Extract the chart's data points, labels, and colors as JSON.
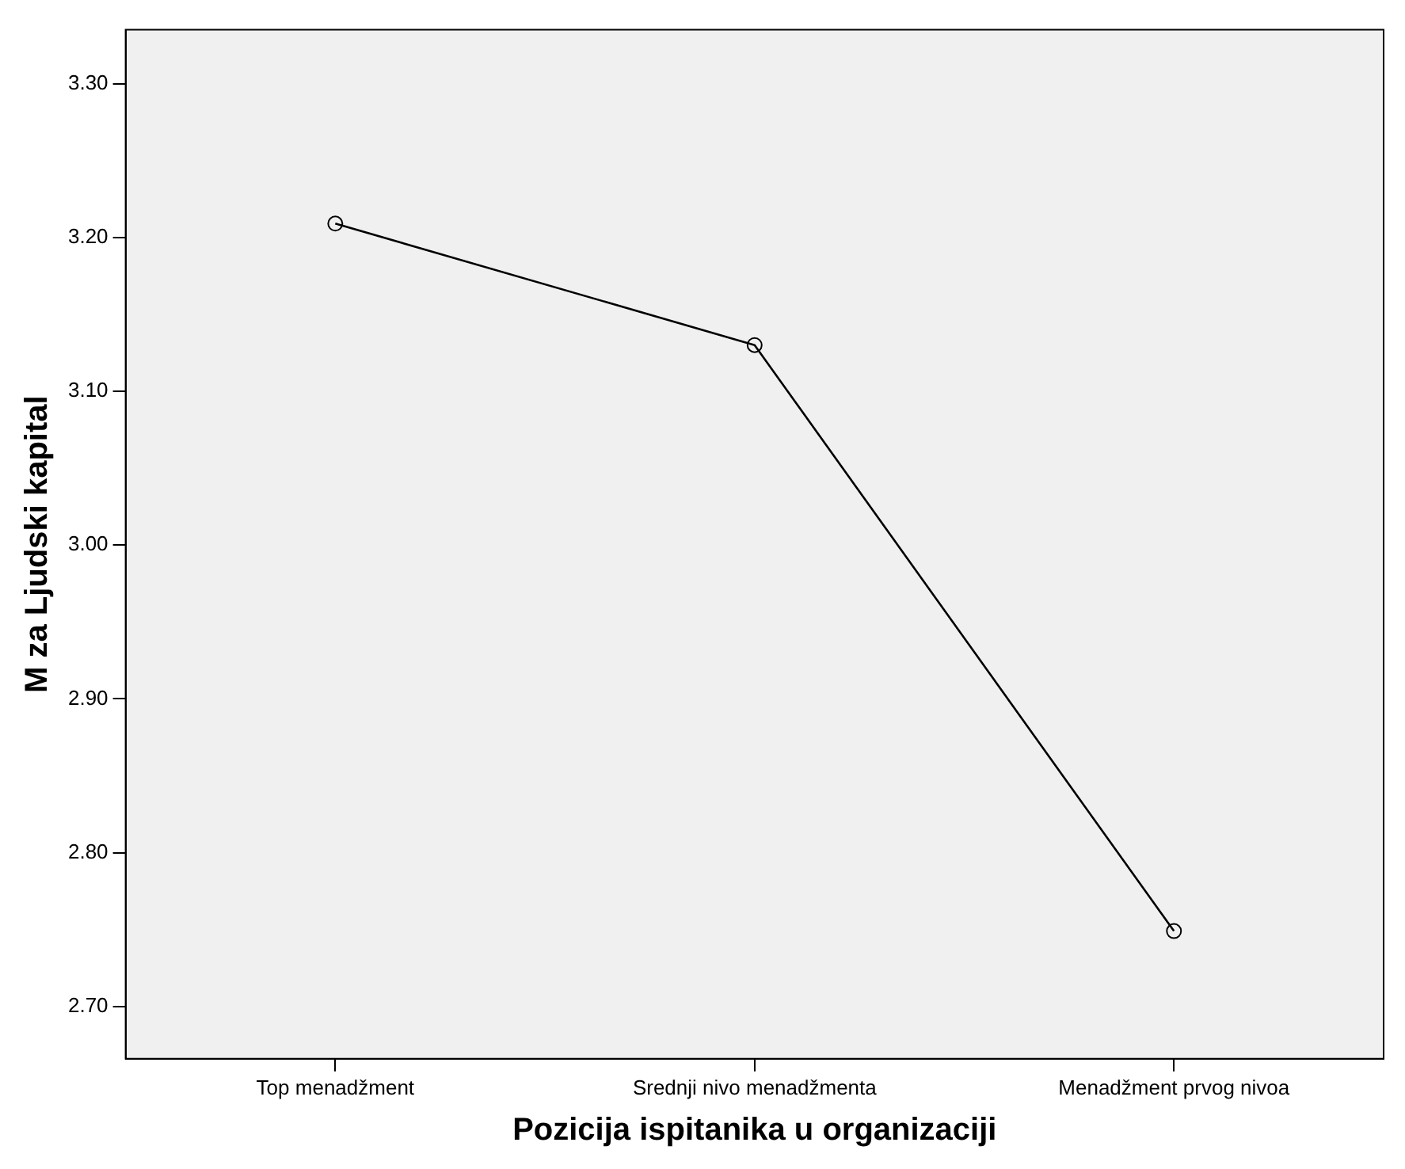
{
  "chart_data": {
    "type": "line",
    "xlabel": "Pozicija ispitanika u organizaciji",
    "ylabel": "M za Ljudski kapital",
    "categories": [
      "Top menadžment",
      "Srednji nivo menadžmenta",
      "Menadžment prvog nivoa"
    ],
    "series": [
      {
        "color": "#000000",
        "values": [
          3.209,
          3.13,
          2.749
        ]
      }
    ],
    "ylim": [
      2.666,
      3.335
    ],
    "yticks": [
      {
        "value": 2.7,
        "label": "2.70"
      },
      {
        "value": 2.8,
        "label": "2.80"
      },
      {
        "value": 2.9,
        "label": "2.90"
      },
      {
        "value": 3.0,
        "label": "3.00"
      },
      {
        "value": 3.1,
        "label": "3.10"
      },
      {
        "value": 3.2,
        "label": "3.20"
      },
      {
        "value": 3.3,
        "label": "3.30"
      }
    ],
    "grid": false,
    "legend": false,
    "marker": "circle",
    "line_style": "solid"
  }
}
